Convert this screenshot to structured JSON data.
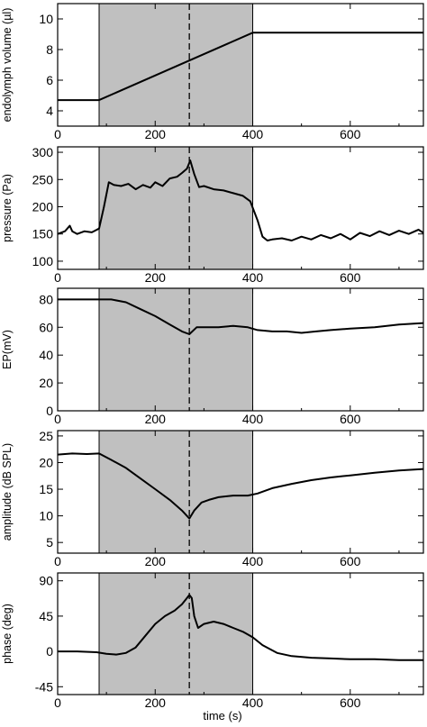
{
  "chart_data": [
    {
      "type": "line",
      "ylabel": "endolymph volume (µl)",
      "xlabel": "",
      "xlim": [
        0,
        750
      ],
      "ylim": [
        3,
        11
      ],
      "xticks": [
        0,
        200,
        400,
        600
      ],
      "yticks": [
        4,
        6,
        8,
        10
      ],
      "shade_range": [
        85,
        400
      ],
      "vline": 270,
      "series": [
        {
          "x": [
            0,
            85,
            400,
            750
          ],
          "y": [
            4.7,
            4.7,
            9.1,
            9.1
          ]
        }
      ]
    },
    {
      "type": "line",
      "ylabel": "pressure (Pa)",
      "xlabel": "",
      "xlim": [
        0,
        750
      ],
      "ylim": [
        85,
        310
      ],
      "xticks": [
        0,
        200,
        400,
        600
      ],
      "yticks": [
        100,
        150,
        200,
        250,
        300
      ],
      "shade_range": [
        85,
        400
      ],
      "vline": 270,
      "series": [
        {
          "x": [
            0,
            15,
            25,
            30,
            40,
            55,
            70,
            85,
            95,
            105,
            115,
            130,
            145,
            160,
            175,
            190,
            200,
            215,
            230,
            245,
            255,
            265,
            272,
            280,
            290,
            300,
            320,
            340,
            360,
            380,
            395,
            410,
            420,
            430,
            440,
            460,
            480,
            500,
            520,
            540,
            560,
            580,
            600,
            620,
            640,
            660,
            680,
            700,
            720,
            740,
            750
          ],
          "y": [
            150,
            155,
            165,
            155,
            150,
            155,
            153,
            160,
            200,
            245,
            240,
            238,
            242,
            232,
            240,
            235,
            245,
            238,
            252,
            255,
            262,
            270,
            285,
            260,
            236,
            238,
            232,
            230,
            225,
            220,
            210,
            175,
            145,
            138,
            140,
            142,
            138,
            145,
            140,
            148,
            142,
            150,
            140,
            152,
            146,
            155,
            148,
            156,
            150,
            158,
            152
          ]
        }
      ]
    },
    {
      "type": "line",
      "ylabel": "EP(mV)",
      "xlabel": "",
      "xlim": [
        0,
        750
      ],
      "ylim": [
        0,
        88
      ],
      "xticks": [
        0,
        200,
        400,
        600
      ],
      "yticks": [
        0,
        20,
        40,
        60,
        80
      ],
      "shade_range": [
        85,
        400
      ],
      "vline": 270,
      "series": [
        {
          "x": [
            0,
            50,
            85,
            110,
            140,
            170,
            200,
            230,
            255,
            270,
            285,
            300,
            330,
            360,
            390,
            410,
            440,
            470,
            500,
            530,
            560,
            600,
            650,
            700,
            750
          ],
          "y": [
            80,
            80,
            80,
            80,
            78,
            73,
            68,
            62,
            57,
            55,
            60,
            60,
            60,
            61,
            60,
            58,
            57,
            57,
            56,
            57,
            58,
            59,
            60,
            62,
            63
          ]
        }
      ]
    },
    {
      "type": "line",
      "ylabel": "amplitude (dB SPL)",
      "xlabel": "",
      "xlim": [
        0,
        750
      ],
      "ylim": [
        3,
        26
      ],
      "xticks": [
        0,
        200,
        400,
        600
      ],
      "yticks": [
        5,
        10,
        15,
        20,
        25
      ],
      "shade_range": [
        85,
        400
      ],
      "vline": 270,
      "series": [
        {
          "x": [
            0,
            30,
            60,
            85,
            110,
            140,
            170,
            200,
            230,
            255,
            270,
            280,
            295,
            310,
            330,
            360,
            390,
            410,
            440,
            480,
            520,
            560,
            600,
            650,
            700,
            750
          ],
          "y": [
            21.5,
            21.7,
            21.6,
            21.7,
            20.5,
            19,
            17,
            15,
            13,
            11,
            9.5,
            11,
            12.5,
            13,
            13.5,
            13.8,
            13.8,
            14.2,
            15.2,
            16,
            16.7,
            17.2,
            17.6,
            18.1,
            18.5,
            18.8
          ]
        }
      ]
    },
    {
      "type": "line",
      "ylabel": "phase (deg)",
      "xlabel": "time (s)",
      "xlim": [
        0,
        750
      ],
      "ylim": [
        -55,
        100
      ],
      "xticks": [
        0,
        200,
        400,
        600
      ],
      "yticks": [
        -45,
        0,
        45,
        90
      ],
      "shade_range": [
        85,
        400
      ],
      "vline": 270,
      "series": [
        {
          "x": [
            0,
            40,
            80,
            100,
            120,
            140,
            160,
            180,
            200,
            220,
            240,
            255,
            265,
            270,
            275,
            280,
            288,
            300,
            320,
            340,
            360,
            380,
            400,
            420,
            450,
            480,
            520,
            560,
            600,
            650,
            700,
            750
          ],
          "y": [
            0,
            0,
            -1,
            -3,
            -4,
            -2,
            5,
            20,
            35,
            45,
            52,
            60,
            68,
            72,
            68,
            45,
            30,
            35,
            38,
            35,
            30,
            25,
            18,
            8,
            -2,
            -6,
            -8,
            -9,
            -10,
            -10,
            -11,
            -11
          ]
        }
      ]
    }
  ]
}
